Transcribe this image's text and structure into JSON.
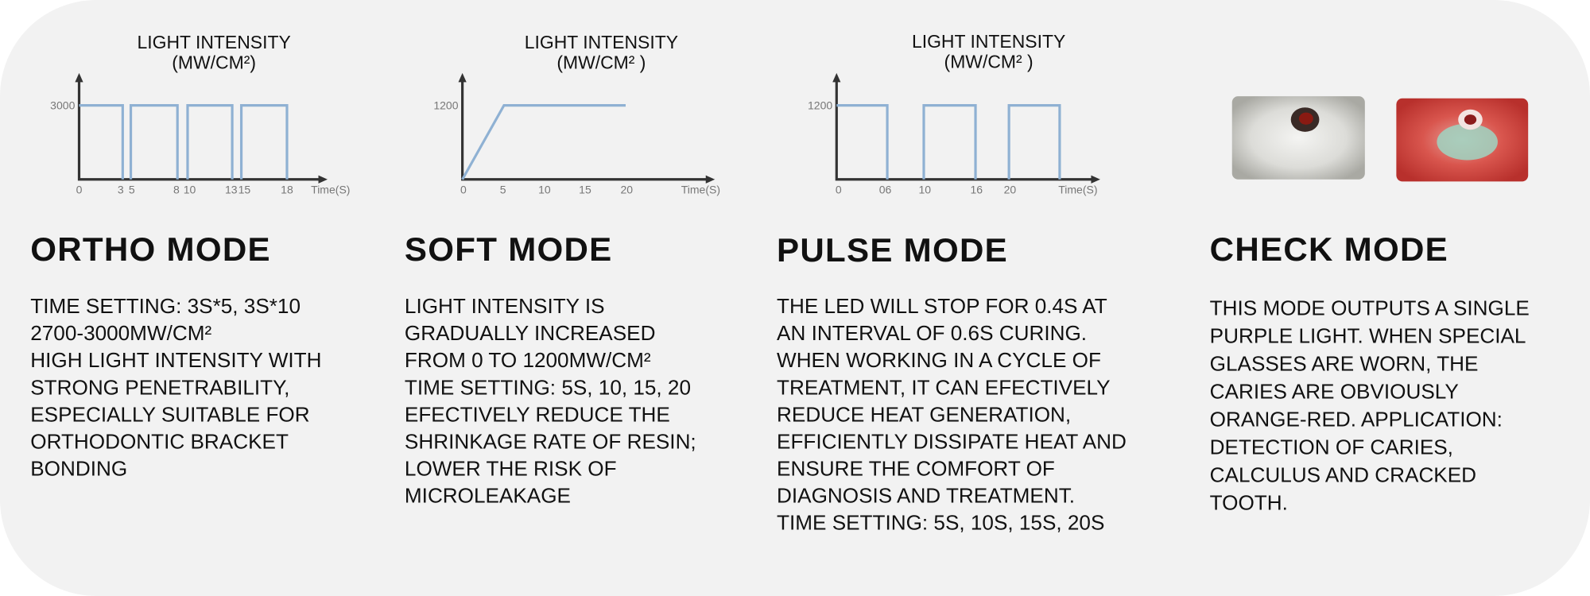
{
  "panels": [
    {
      "chart": {
        "title_lines": [
          "LIGHT INTENSITY",
          "(MW/CM²)"
        ],
        "y_label": "3000",
        "x_labels": [
          "0",
          "3",
          "5",
          "8",
          "10",
          "13",
          "15",
          "18"
        ],
        "x_unit": "Time(S)"
      },
      "title": "ORTHO MODE",
      "lines": [
        "TIME SETTING: 3S*5, 3S*10",
        "2700-3000MW/CM²",
        "HIGH LIGHT INTENSITY WITH",
        "STRONG PENETRABILITY,",
        "ESPECIALLY SUITABLE FOR",
        "ORTHODONTIC BRACKET",
        "BONDING"
      ]
    },
    {
      "chart": {
        "title_lines": [
          "LIGHT INTENSITY",
          "(MW/CM² )"
        ],
        "y_label": "1200",
        "x_labels": [
          "0",
          "5",
          "10",
          "15",
          "20"
        ],
        "x_unit": "Time(S)"
      },
      "title": "SOFT MODE",
      "lines": [
        "LIGHT INTENSITY IS",
        "GRADUALLY INCREASED",
        "FROM 0 TO 1200MW/CM²",
        "TIME SETTING: 5S, 10, 15, 20",
        "EFECTIVELY REDUCE THE",
        "SHRINKAGE RATE OF RESIN;",
        "LOWER THE RISK OF",
        "MICROLEAKAGE"
      ]
    },
    {
      "chart": {
        "title_lines": [
          "LIGHT INTENSITY",
          "(MW/CM² )"
        ],
        "y_label": "1200",
        "x_labels": [
          "0",
          "06",
          "10",
          "16",
          "20"
        ],
        "x_unit": "Time(S)"
      },
      "title": "PULSE MODE",
      "lines": [
        "THE LED WILL STOP FOR 0.4S AT",
        "AN INTERVAL OF 0.6S CURING.",
        "WHEN WORKING IN A CYCLE OF",
        "TREATMENT, IT CAN EFECTIVELY",
        "REDUCE HEAT GENERATION,",
        "EFFICIENTLY DISSIPATE HEAT AND",
        "ENSURE THE COMFORT OF",
        "DIAGNOSIS AND TREATMENT.",
        "TIME SETTING: 5S, 10S, 15S, 20S"
      ]
    },
    {
      "title": "CHECK MODE",
      "lines": [
        "THIS MODE OUTPUTS A SINGLE",
        "PURPLE LIGHT. WHEN SPECIAL",
        "GLASSES ARE WORN, THE",
        "CARIES ARE OBVIOUSLY",
        "ORANGE-RED. APPLICATION:",
        "DETECTION OF CARIES,",
        "CALCULUS AND CRACKED",
        "TOOTH."
      ]
    }
  ]
}
